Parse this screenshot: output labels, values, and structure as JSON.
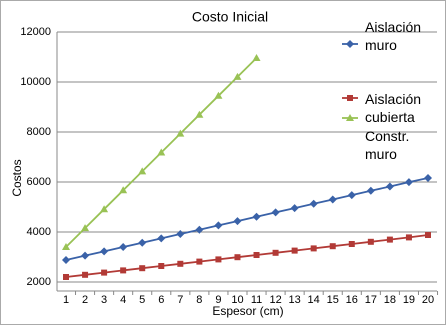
{
  "chart_data": {
    "type": "line",
    "title": "Costo Inicial",
    "x_label": "Espesor (cm)",
    "y_label": "Costos",
    "categories": [
      "1",
      "2",
      "3",
      "4",
      "5",
      "6",
      "7",
      "8",
      "9",
      "10",
      "11",
      "12",
      "13",
      "14",
      "15",
      "16",
      "17",
      "18",
      "19",
      "20"
    ],
    "series": [
      {
        "name": "Aislación muro",
        "color": "#3a62a8",
        "marker": "diamond",
        "values": [
          2880,
          3053,
          3226,
          3399,
          3572,
          3745,
          3918,
          4091,
          4264,
          4437,
          4610,
          4783,
          4956,
          5129,
          5302,
          5475,
          5648,
          5821,
          5994,
          6160
        ]
      },
      {
        "name": "Aislación cubierta",
        "color": "#b23a36",
        "marker": "square",
        "values": [
          2200,
          2288,
          2376,
          2464,
          2552,
          2640,
          2728,
          2816,
          2904,
          2992,
          3080,
          3168,
          3256,
          3344,
          3432,
          3520,
          3608,
          3696,
          3784,
          3880
        ]
      },
      {
        "name": "Constr. muro",
        "color": "#99c255",
        "marker": "triangle",
        "values": [
          3400,
          4156,
          4912,
          5668,
          6424,
          7180,
          7936,
          8692,
          9448,
          10204,
          10960,
          null,
          null,
          null,
          null,
          null,
          null,
          null,
          null,
          null
        ]
      }
    ],
    "ylim": [
      1640,
      12000
    ],
    "yticks": [
      2000,
      4000,
      6000,
      8000,
      10000,
      12000
    ],
    "grid": true,
    "legend": "top-right"
  }
}
